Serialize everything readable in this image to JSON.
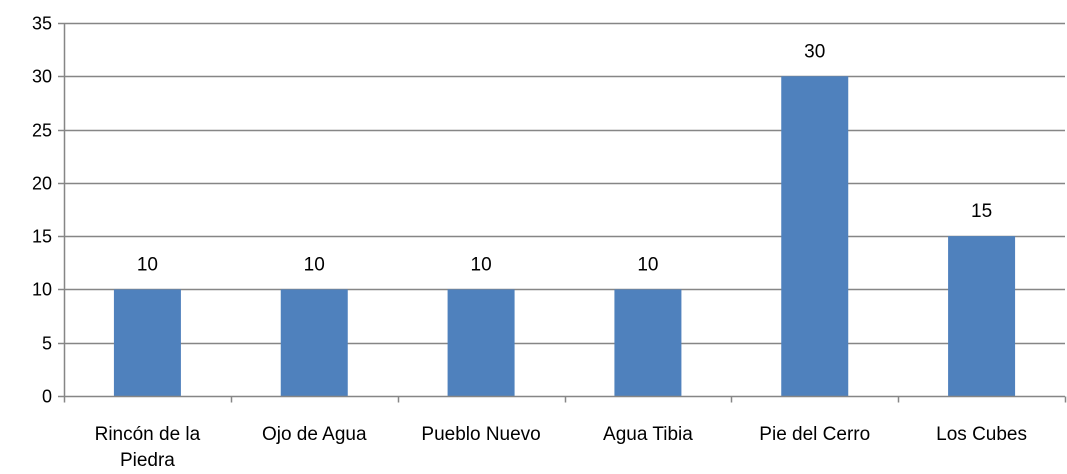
{
  "chart_data": {
    "type": "bar",
    "title": "",
    "xlabel": "",
    "ylabel": "",
    "categories": [
      [
        "Rincón de la",
        "Piedra"
      ],
      [
        "Ojo de Agua"
      ],
      [
        "Pueblo Nuevo"
      ],
      [
        "Agua Tibia"
      ],
      [
        "Pie del Cerro"
      ],
      [
        "Los Cubes"
      ]
    ],
    "values": [
      10,
      10,
      10,
      10,
      30,
      15
    ],
    "data_labels": [
      "10",
      "10",
      "10",
      "10",
      "30",
      "15"
    ],
    "ylim": [
      0,
      35
    ],
    "yticks": [
      "0",
      "5",
      "10",
      "15",
      "20",
      "25",
      "30",
      "35"
    ],
    "grid": true,
    "legend": "none",
    "colors": {
      "bar": "#4F81BD",
      "grid": "#868686",
      "axis": "#868686"
    }
  }
}
